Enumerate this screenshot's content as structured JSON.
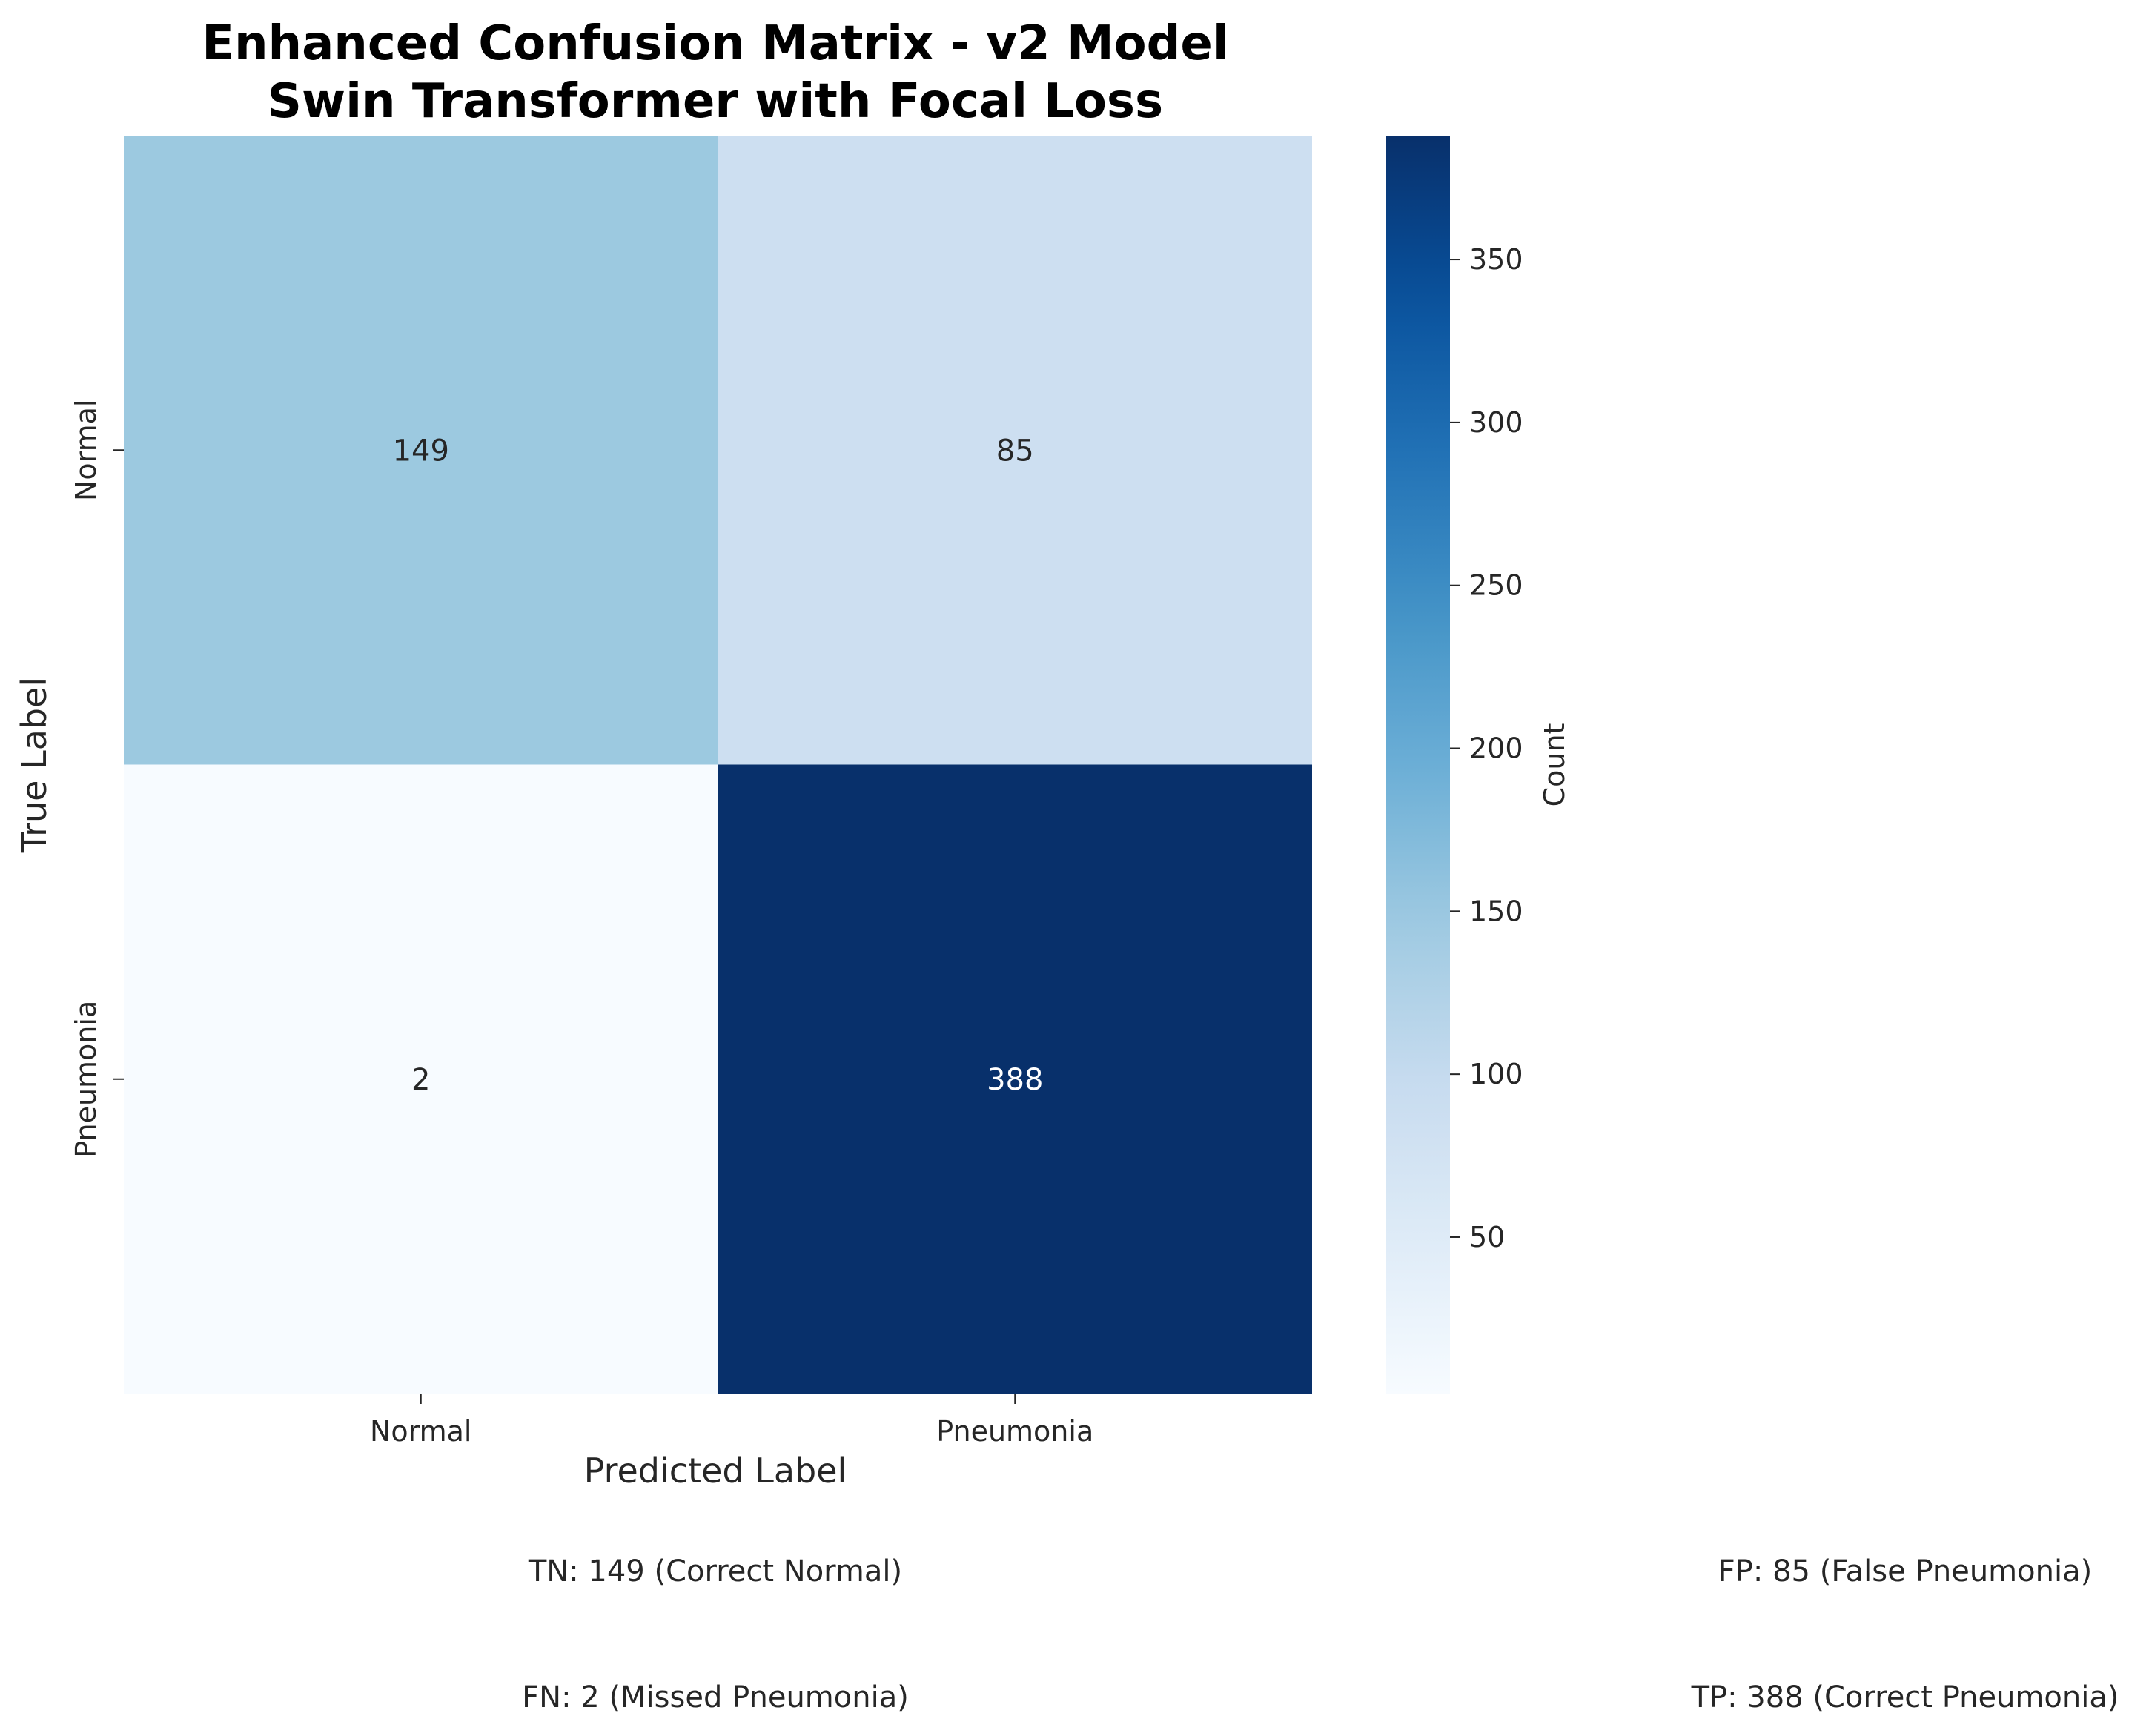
{
  "chart_data": {
    "type": "heatmap",
    "title": [
      "Enhanced Confusion Matrix - v2 Model",
      "Swin Transformer with Focal Loss"
    ],
    "xlabel": "Predicted Label",
    "ylabel": "True Label",
    "x_categories": [
      "Normal",
      "Pneumonia"
    ],
    "y_categories": [
      "Normal",
      "Pneumonia"
    ],
    "values": [
      [
        149,
        85
      ],
      [
        2,
        388
      ]
    ],
    "colormap": "Blues",
    "colorbar": {
      "label": "Count",
      "range": [
        2,
        388
      ],
      "ticks": [
        50,
        100,
        150,
        200,
        250,
        300,
        350
      ]
    },
    "annotations": [
      "TN: 149 (Correct Normal)",
      "FP: 85 (False Pneumonia)",
      "FN: 2 (Missed Pneumonia)",
      "TP: 388 (Correct Pneumonia)"
    ]
  }
}
